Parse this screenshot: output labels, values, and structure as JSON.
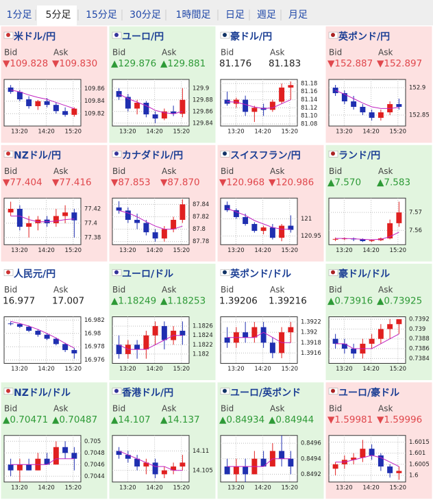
{
  "tabs": {
    "items": [
      "1分足",
      "5分足",
      "15分足",
      "30分足",
      "1時間足",
      "日足",
      "週足",
      "月足"
    ],
    "selected": 1
  },
  "bid_label": "Bid",
  "ask_label": "Ask",
  "x_labels": [
    "13:20",
    "14:20",
    "15:20"
  ],
  "panels": [
    {
      "name": "米ドル/円",
      "trend": "down",
      "bid": "▼109.828",
      "ask": "▼109.830",
      "ylim": [
        109.8,
        109.875
      ],
      "yticks": [
        109.86,
        109.84,
        109.82
      ],
      "candles": [
        [
          109.862,
          109.866,
          109.852,
          109.855
        ],
        [
          109.855,
          109.858,
          109.84,
          109.843
        ],
        [
          109.843,
          109.848,
          109.828,
          109.832
        ],
        [
          109.832,
          109.842,
          109.826,
          109.84
        ],
        [
          109.84,
          109.845,
          109.83,
          109.834
        ],
        [
          109.834,
          109.838,
          109.82,
          109.824
        ],
        [
          109.824,
          109.83,
          109.815,
          109.818
        ],
        [
          109.818,
          109.83,
          109.815,
          109.828
        ]
      ],
      "ma": [
        109.858,
        109.855,
        109.85,
        109.846,
        109.843,
        109.838,
        109.833,
        109.828
      ]
    },
    {
      "name": "ユーロ/円",
      "trend": "up",
      "bid": "▲129.876",
      "ask": "▲129.881",
      "ylim": [
        129.835,
        129.915
      ],
      "yticks": [
        129.9,
        129.88,
        129.86,
        129.84
      ],
      "candles": [
        [
          129.895,
          129.9,
          129.88,
          129.885
        ],
        [
          129.885,
          129.89,
          129.86,
          129.865
        ],
        [
          129.865,
          129.88,
          129.855,
          129.875
        ],
        [
          129.875,
          129.878,
          129.85,
          129.855
        ],
        [
          129.855,
          129.86,
          129.84,
          129.848
        ],
        [
          129.848,
          129.865,
          129.845,
          129.86
        ],
        [
          129.86,
          129.87,
          129.852,
          129.856
        ],
        [
          129.856,
          129.9,
          129.85,
          129.88
        ]
      ],
      "ma": [
        129.89,
        129.882,
        129.876,
        129.87,
        129.862,
        129.858,
        129.856,
        129.86
      ]
    },
    {
      "name": "豪ドル/円",
      "trend": "flat",
      "bid": "81.176",
      "ask": "81.183",
      "ylim": [
        81.075,
        81.19
      ],
      "yticks": [
        81.18,
        81.16,
        81.14,
        81.12,
        {
          "value": 81.1,
          "label": "81.10"
        },
        81.08
      ],
      "candles": [
        [
          81.14,
          81.16,
          81.125,
          81.13
        ],
        [
          81.13,
          81.145,
          81.12,
          81.14
        ],
        [
          81.14,
          81.15,
          81.1,
          81.11
        ],
        [
          81.11,
          81.125,
          81.085,
          81.12
        ],
        [
          81.12,
          81.13,
          81.1,
          81.115
        ],
        [
          81.115,
          81.14,
          81.11,
          81.135
        ],
        [
          81.135,
          81.18,
          81.13,
          81.17
        ],
        [
          81.17,
          81.185,
          81.14,
          81.176
        ]
      ],
      "ma": [
        81.135,
        81.134,
        81.128,
        81.122,
        81.118,
        81.12,
        81.13,
        81.14
      ]
    },
    {
      "name": "英ポンド/円",
      "trend": "down",
      "bid": "▼152.887",
      "ask": "▼152.897",
      "ylim": [
        152.83,
        152.915
      ],
      "yticks": [
        152.9,
        152.85
      ],
      "candles": [
        [
          152.9,
          152.905,
          152.885,
          152.89
        ],
        [
          152.89,
          152.895,
          152.87,
          152.875
        ],
        [
          152.875,
          152.885,
          152.86,
          152.865
        ],
        [
          152.865,
          152.87,
          152.85,
          152.855
        ],
        [
          152.855,
          152.86,
          152.84,
          152.845
        ],
        [
          152.845,
          152.86,
          152.84,
          152.855
        ],
        [
          152.855,
          152.875,
          152.85,
          152.87
        ],
        [
          152.87,
          152.88,
          152.86,
          152.865
        ]
      ],
      "ma": [
        152.895,
        152.888,
        152.88,
        152.872,
        152.865,
        152.862,
        152.862,
        152.864
      ]
    },
    {
      "name": "NZドル/円",
      "trend": "down",
      "bid": "▼77.404",
      "ask": "▼77.416",
      "ylim": [
        77.37,
        77.435
      ],
      "yticks": [
        77.42,
        77.4,
        77.38
      ],
      "candles": [
        [
          77.415,
          77.43,
          77.41,
          77.42
        ],
        [
          77.42,
          77.425,
          77.39,
          77.395
        ],
        [
          77.395,
          77.41,
          77.38,
          77.4
        ],
        [
          77.4,
          77.41,
          77.39,
          77.405
        ],
        [
          77.405,
          77.41,
          77.395,
          77.4
        ],
        [
          77.4,
          77.42,
          77.395,
          77.41
        ],
        [
          77.41,
          77.425,
          77.4,
          77.415
        ],
        [
          77.415,
          77.42,
          77.38,
          77.404
        ]
      ],
      "ma": [
        77.41,
        77.41,
        77.405,
        77.402,
        77.402,
        77.403,
        77.405,
        77.406
      ]
    },
    {
      "name": "カナダドル/円",
      "trend": "down",
      "bid": "▼87.853",
      "ask": "▼87.870",
      "ylim": [
        87.775,
        87.85
      ],
      "yticks": [
        87.84,
        87.82,
        87.8,
        87.78
      ],
      "candles": [
        [
          87.835,
          87.845,
          87.825,
          87.83
        ],
        [
          87.83,
          87.835,
          87.81,
          87.815
        ],
        [
          87.815,
          87.825,
          87.8,
          87.81
        ],
        [
          87.81,
          87.815,
          87.79,
          87.795
        ],
        [
          87.795,
          87.8,
          87.78,
          87.785
        ],
        [
          87.785,
          87.805,
          87.78,
          87.8
        ],
        [
          87.8,
          87.82,
          87.795,
          87.815
        ],
        [
          87.815,
          87.848,
          87.81,
          87.84
        ]
      ],
      "ma": [
        87.83,
        87.826,
        87.82,
        87.812,
        87.805,
        87.8,
        87.8,
        87.805
      ]
    },
    {
      "name": "スイスフラン/円",
      "trend": "down",
      "bid": "▼120.968",
      "ask": "▼120.986",
      "ylim": [
        120.925,
        121.06
      ],
      "yticks": [
        121,
        120.95
      ],
      "candles": [
        [
          121.04,
          121.05,
          121.02,
          121.025
        ],
        [
          121.025,
          121.03,
          121.0,
          121.005
        ],
        [
          121.005,
          121.015,
          120.98,
          120.985
        ],
        [
          120.985,
          120.99,
          120.96,
          120.965
        ],
        [
          120.965,
          120.98,
          120.955,
          120.975
        ],
        [
          120.975,
          120.985,
          120.94,
          120.945
        ],
        [
          120.945,
          120.985,
          120.935,
          120.98
        ],
        [
          120.98,
          121.01,
          120.96,
          120.968
        ]
      ],
      "ma": [
        121.03,
        121.02,
        121.01,
        120.995,
        120.985,
        120.975,
        120.97,
        120.97
      ]
    },
    {
      "name": "ランド/円",
      "trend": "up",
      "bid": "▲7.570",
      "ask": "▲7.583",
      "ylim": [
        7.552,
        7.578
      ],
      "yticks": [
        7.57,
        7.56
      ],
      "candles": [
        [
          7.555,
          7.556,
          7.554,
          7.5552
        ],
        [
          7.5552,
          7.556,
          7.5545,
          7.5555
        ],
        [
          7.5555,
          7.556,
          7.554,
          7.555
        ],
        [
          7.555,
          7.5555,
          7.5535,
          7.554
        ],
        [
          7.554,
          7.555,
          7.5535,
          7.5545
        ],
        [
          7.5545,
          7.556,
          7.554,
          7.5555
        ],
        [
          7.5555,
          7.566,
          7.555,
          7.564
        ],
        [
          7.564,
          7.576,
          7.562,
          7.57
        ]
      ],
      "ma": [
        7.5555,
        7.5555,
        7.5553,
        7.555,
        7.5548,
        7.555,
        7.5565,
        7.559
      ]
    },
    {
      "name": "人民元/円",
      "trend": "flat",
      "bid": "16.977",
      "ask": "17.007",
      "ylim": [
        16.9755,
        16.9825
      ],
      "yticks": [
        16.982,
        16.98,
        16.978,
        16.976
      ],
      "candles": [
        [
          16.9815,
          16.9818,
          16.9812,
          16.9814
        ],
        [
          16.9814,
          16.9815,
          16.9808,
          16.981
        ],
        [
          16.981,
          16.9812,
          16.9802,
          16.9804
        ],
        [
          16.9804,
          16.9806,
          16.9795,
          16.9798
        ],
        [
          16.9798,
          16.98,
          16.979,
          16.9792
        ],
        [
          16.9792,
          16.9794,
          16.9782,
          16.9784
        ],
        [
          16.9784,
          16.9786,
          16.9772,
          16.9775
        ],
        [
          16.9775,
          16.9778,
          16.9762,
          16.977
        ]
      ],
      "ma": [
        16.9818,
        16.9815,
        16.9811,
        16.9806,
        16.98,
        16.9793,
        16.9785,
        16.9778
      ]
    },
    {
      "name": "ユーロ/ドル",
      "trend": "up",
      "bid": "▲1.18249",
      "ask": "▲1.18253",
      "ylim": [
        1.1818,
        1.1828
      ],
      "yticks": [
        1.1826,
        1.1824,
        1.1822,
        1.182
      ],
      "candles": [
        [
          1.1822,
          1.1824,
          1.1819,
          1.182
        ],
        [
          1.182,
          1.1823,
          1.1819,
          1.1822
        ],
        [
          1.1822,
          1.1823,
          1.1819,
          1.1821
        ],
        [
          1.1821,
          1.1825,
          1.1819,
          1.1824
        ],
        [
          1.1824,
          1.1827,
          1.1822,
          1.1826
        ],
        [
          1.1826,
          1.1827,
          1.1821,
          1.1823
        ],
        [
          1.1823,
          1.1826,
          1.1822,
          1.1825
        ],
        [
          1.1825,
          1.1827,
          1.1822,
          1.1824
        ]
      ],
      "ma": [
        1.1822,
        1.1821,
        1.1821,
        1.1821,
        1.1822,
        1.1823,
        1.1824,
        1.1824
      ]
    },
    {
      "name": "英ポンド/ドル",
      "trend": "flat",
      "bid": "1.39206",
      "ask": "1.39216",
      "ylim": [
        1.3914,
        1.3923
      ],
      "yticks": [
        1.3922,
        1.392,
        1.3918,
        1.3916
      ],
      "candles": [
        [
          1.3919,
          1.3921,
          1.3917,
          1.3918
        ],
        [
          1.3918,
          1.3921,
          1.3917,
          1.392
        ],
        [
          1.392,
          1.3922,
          1.3918,
          1.3919
        ],
        [
          1.3919,
          1.3922,
          1.3918,
          1.3921
        ],
        [
          1.3921,
          1.3922,
          1.3917,
          1.3918
        ],
        [
          1.3918,
          1.3919,
          1.3915,
          1.3916
        ],
        [
          1.3916,
          1.3921,
          1.3915,
          1.392
        ],
        [
          1.392,
          1.3922,
          1.3918,
          1.3921
        ]
      ],
      "ma": [
        1.3919,
        1.3919,
        1.3919,
        1.3919,
        1.392,
        1.3919,
        1.3918,
        1.3918
      ]
    },
    {
      "name": "豪ドル/ドル",
      "trend": "up",
      "bid": "▲0.73916",
      "ask": "▲0.73925",
      "ylim": [
        0.7383,
        0.73925
      ],
      "yticks": [
        0.7392,
        0.739,
        0.7388,
        0.7386,
        0.7384
      ],
      "candles": [
        [
          0.7388,
          0.7389,
          0.7386,
          0.7387
        ],
        [
          0.7387,
          0.7388,
          0.7385,
          0.7386
        ],
        [
          0.7386,
          0.7387,
          0.7384,
          0.7385
        ],
        [
          0.7385,
          0.7388,
          0.7384,
          0.7387
        ],
        [
          0.7387,
          0.7389,
          0.7386,
          0.7388
        ],
        [
          0.7388,
          0.7391,
          0.7387,
          0.739
        ],
        [
          0.739,
          0.7392,
          0.7388,
          0.7391
        ],
        [
          0.7391,
          0.7392,
          0.7389,
          0.7392
        ]
      ],
      "ma": [
        0.7387,
        0.7387,
        0.7386,
        0.7386,
        0.7386,
        0.7387,
        0.7388,
        0.7389
      ]
    },
    {
      "name": "NZドル/ドル",
      "trend": "up",
      "bid": "▲0.70471",
      "ask": "▲0.70487",
      "ylim": [
        0.7043,
        0.7051
      ],
      "yticks": [
        0.705,
        0.7048,
        0.7046,
        0.7044
      ],
      "candles": [
        [
          0.7046,
          0.7047,
          0.7044,
          0.7045
        ],
        [
          0.7045,
          0.7047,
          0.7043,
          0.7046
        ],
        [
          0.7046,
          0.7047,
          0.7045,
          0.7045
        ],
        [
          0.7045,
          0.7048,
          0.7045,
          0.7047
        ],
        [
          0.7047,
          0.7048,
          0.7046,
          0.7046
        ],
        [
          0.7046,
          0.705,
          0.7046,
          0.7049
        ],
        [
          0.7049,
          0.705,
          0.7047,
          0.7048
        ],
        [
          0.7048,
          0.7049,
          0.7045,
          0.7047
        ]
      ],
      "ma": [
        0.7046,
        0.7046,
        0.7046,
        0.7046,
        0.7046,
        0.7047,
        0.7047,
        0.7047
      ]
    },
    {
      "name": "香港ドル/円",
      "trend": "up",
      "bid": "▲14.107",
      "ask": "▲14.137",
      "ylim": [
        14.102,
        14.114
      ],
      "yticks": [
        14.11,
        14.105
      ],
      "candles": [
        [
          14.11,
          14.111,
          14.108,
          14.109
        ],
        [
          14.109,
          14.11,
          14.107,
          14.108
        ],
        [
          14.108,
          14.109,
          14.105,
          14.106
        ],
        [
          14.106,
          14.108,
          14.104,
          14.107
        ],
        [
          14.107,
          14.108,
          14.103,
          14.104
        ],
        [
          14.104,
          14.106,
          14.103,
          14.105
        ],
        [
          14.105,
          14.107,
          14.104,
          14.106
        ],
        [
          14.106,
          14.109,
          14.105,
          14.107
        ]
      ],
      "ma": [
        14.11,
        14.109,
        14.108,
        14.107,
        14.106,
        14.106,
        14.105,
        14.105
      ]
    },
    {
      "name": "ユーロ/英ポンド",
      "trend": "up",
      "bid": "▲0.84934",
      "ask": "▲0.84944",
      "ylim": [
        0.8491,
        0.8497
      ],
      "yticks": [
        0.8496,
        0.8494,
        0.8492
      ],
      "candles": [
        [
          0.8493,
          0.8494,
          0.8492,
          0.8492
        ],
        [
          0.8492,
          0.8494,
          0.8491,
          0.8493
        ],
        [
          0.8493,
          0.8494,
          0.8491,
          0.8492
        ],
        [
          0.8492,
          0.8495,
          0.8492,
          0.8494
        ],
        [
          0.8494,
          0.8495,
          0.8493,
          0.8493
        ],
        [
          0.8493,
          0.8496,
          0.8493,
          0.8495
        ],
        [
          0.8495,
          0.8497,
          0.8493,
          0.8494
        ],
        [
          0.8494,
          0.8495,
          0.8492,
          0.8493
        ]
      ],
      "ma": [
        0.8493,
        0.8493,
        0.8493,
        0.8493,
        0.8493,
        0.8494,
        0.8494,
        0.8494
      ]
    },
    {
      "name": "ユーロ/豪ドル",
      "trend": "down",
      "bid": "▼1.59981",
      "ask": "▼1.59996",
      "ylim": [
        1.5997,
        1.6018
      ],
      "yticks": [
        1.6015,
        1.601,
        1.6005,
        1.6
      ],
      "candles": [
        [
          1.6003,
          1.6006,
          1.6,
          1.6005
        ],
        [
          1.6005,
          1.6009,
          1.6003,
          1.6007
        ],
        [
          1.6007,
          1.601,
          1.6005,
          1.6008
        ],
        [
          1.6008,
          1.6016,
          1.6006,
          1.6012
        ],
        [
          1.6012,
          1.6014,
          1.6007,
          1.6009
        ],
        [
          1.6009,
          1.601,
          1.6002,
          1.6004
        ],
        [
          1.6004,
          1.6005,
          1.5999,
          1.6001
        ],
        [
          1.6001,
          1.6004,
          1.5998,
          1.6002
        ]
      ],
      "ma": [
        1.6006,
        1.6006,
        1.6007,
        1.6008,
        1.6009,
        1.6008,
        1.6006,
        1.6004
      ]
    }
  ]
}
